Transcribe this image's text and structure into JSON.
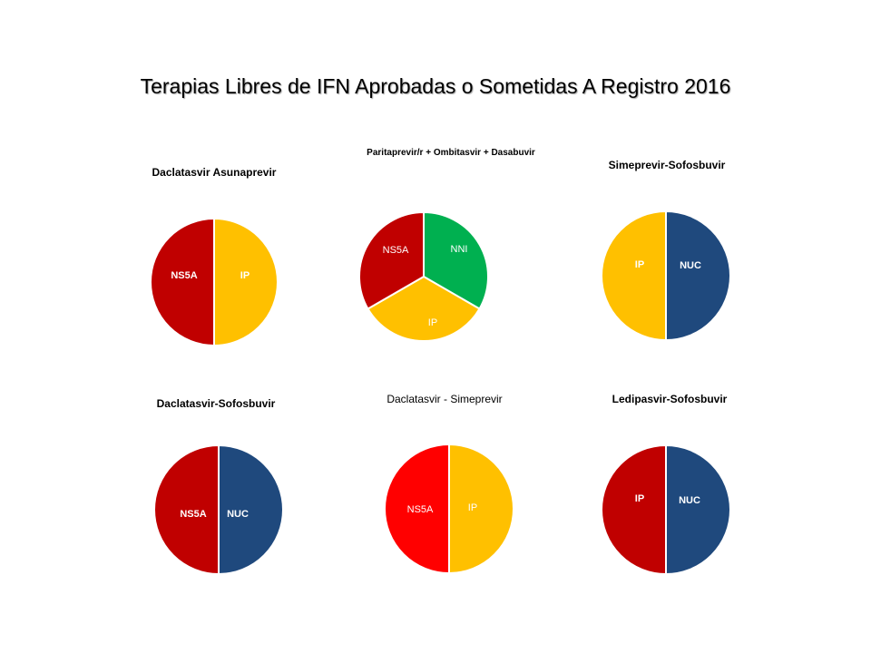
{
  "title": "Terapias Libres de IFN Aprobadas o Sometidas A Registro  2016",
  "colors": {
    "yellow": "#FFC000",
    "dark_red": "#C00000",
    "green": "#00B050",
    "navy": "#1F497D",
    "red": "#FF0000"
  },
  "chart_data": [
    {
      "type": "pie",
      "title": "Daclatasvir Asunaprevir",
      "slices": [
        {
          "label": "IP",
          "value": 50,
          "color": "#FFC000"
        },
        {
          "label": "NS5A",
          "value": 50,
          "color": "#C00000"
        }
      ]
    },
    {
      "type": "pie",
      "title": "Paritaprevir/r + Ombitasvir + Dasabuvir",
      "slices": [
        {
          "label": "NNI",
          "value": 33.3,
          "color": "#00B050"
        },
        {
          "label": "IP",
          "value": 33.3,
          "color": "#FFC000"
        },
        {
          "label": "NS5A",
          "value": 33.3,
          "color": "#C00000"
        }
      ]
    },
    {
      "type": "pie",
      "title": "Simeprevir-Sofosbuvir",
      "slices": [
        {
          "label": "NUC",
          "value": 50,
          "color": "#1F497D"
        },
        {
          "label": "IP",
          "value": 50,
          "color": "#FFC000"
        }
      ]
    },
    {
      "type": "pie",
      "title": "Daclatasvir-Sofosbuvir",
      "slices": [
        {
          "label": "NUC",
          "value": 50,
          "color": "#1F497D"
        },
        {
          "label": "NS5A",
          "value": 50,
          "color": "#C00000"
        }
      ]
    },
    {
      "type": "pie",
      "title": "Daclatasvir - Simeprevir",
      "slices": [
        {
          "label": "IP",
          "value": 50,
          "color": "#FFC000"
        },
        {
          "label": "NS5A",
          "value": 50,
          "color": "#FF0000"
        }
      ]
    },
    {
      "type": "pie",
      "title": "Ledipasvir-Sofosbuvir",
      "slices": [
        {
          "label": "NUC",
          "value": 50,
          "color": "#1F497D"
        },
        {
          "label": "IP",
          "value": 50,
          "color": "#C00000"
        }
      ]
    }
  ]
}
